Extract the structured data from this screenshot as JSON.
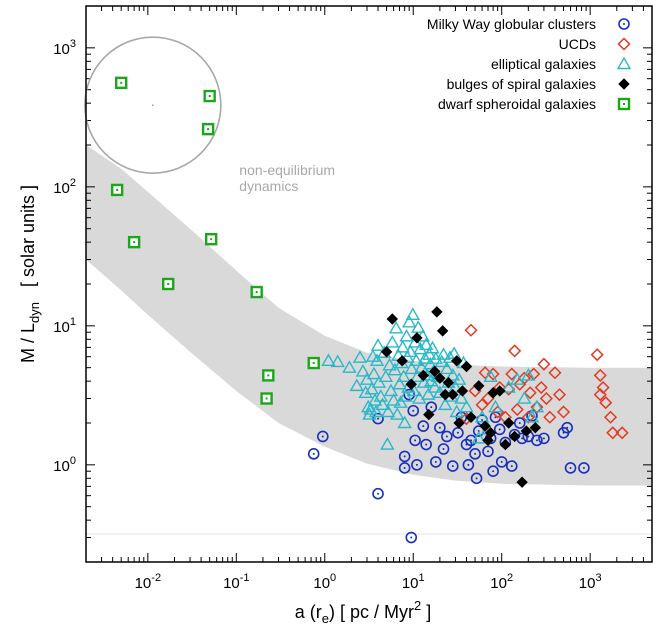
{
  "chart_data": {
    "type": "scatter",
    "xscale": "log",
    "yscale": "log",
    "xlim": [
      0.002,
      5000
    ],
    "ylim": [
      0.2,
      2000
    ],
    "x_ticks": [
      {
        "value": 0.01,
        "base": "10",
        "exp": "-2"
      },
      {
        "value": 0.1,
        "base": "10",
        "exp": "-1"
      },
      {
        "value": 1,
        "base": "10",
        "exp": "0"
      },
      {
        "value": 10,
        "base": "10",
        "exp": "1"
      },
      {
        "value": 100,
        "base": "10",
        "exp": "2"
      },
      {
        "value": 1000,
        "base": "10",
        "exp": "3"
      }
    ],
    "y_ticks": [
      {
        "value": 1,
        "base": "10",
        "exp": "0"
      },
      {
        "value": 10,
        "base": "10",
        "exp": "1"
      },
      {
        "value": 100,
        "base": "10",
        "exp": "2"
      },
      {
        "value": 1000,
        "base": "10",
        "exp": "3"
      }
    ],
    "xlabel": {
      "a": "a (r",
      "sub": "e",
      "mid": ")   [ pc / Myr",
      "sup": "2",
      "end": " ]"
    },
    "ylabel": {
      "a": "M / L",
      "sub": "dyn",
      "end": "   [ solar units ]"
    },
    "legend_position": "top-right",
    "annotation": [
      "non-equilibrium",
      "dynamics"
    ],
    "band": {
      "upper": [
        [
          0.002,
          200
        ],
        [
          0.005,
          135
        ],
        [
          0.01,
          92
        ],
        [
          0.03,
          50
        ],
        [
          0.1,
          25
        ],
        [
          0.3,
          13.5
        ],
        [
          1,
          8.5
        ],
        [
          3,
          6.4
        ],
        [
          10,
          5.6
        ],
        [
          30,
          5.25
        ],
        [
          100,
          5.1
        ],
        [
          1000,
          5.0
        ],
        [
          5000,
          5.0
        ]
      ],
      "lower": [
        [
          0.002,
          30
        ],
        [
          0.005,
          18
        ],
        [
          0.01,
          12
        ],
        [
          0.03,
          6.5
        ],
        [
          0.1,
          3.4
        ],
        [
          0.3,
          2.0
        ],
        [
          1,
          1.35
        ],
        [
          3,
          1.02
        ],
        [
          10,
          0.85
        ],
        [
          30,
          0.77
        ],
        [
          100,
          0.73
        ],
        [
          1000,
          0.71
        ],
        [
          5000,
          0.71
        ]
      ]
    },
    "series": [
      {
        "name": "Milky Way globular clusters",
        "marker": "circle-dot",
        "color": "#1a2fbd",
        "points": [
          [
            0.75,
            1.2
          ],
          [
            0.95,
            1.6
          ],
          [
            4.0,
            0.62
          ],
          [
            4.0,
            2.15
          ],
          [
            8.0,
            0.95
          ],
          [
            8.0,
            1.15
          ],
          [
            9.0,
            3.2
          ],
          [
            10.0,
            2.45
          ],
          [
            10.5,
            1.5
          ],
          [
            11.0,
            1.0
          ],
          [
            9.5,
            0.3
          ],
          [
            13.0,
            1.9
          ],
          [
            14.0,
            1.4
          ],
          [
            16.0,
            2.6
          ],
          [
            18.0,
            1.05
          ],
          [
            20.0,
            1.85
          ],
          [
            22.0,
            1.3
          ],
          [
            24.0,
            1.6
          ],
          [
            28.0,
            0.98
          ],
          [
            32.0,
            1.7
          ],
          [
            35.0,
            2.2
          ],
          [
            40.0,
            1.4
          ],
          [
            42.0,
            1.0
          ],
          [
            45.0,
            1.5
          ],
          [
            50.0,
            1.2
          ],
          [
            52.0,
            0.8
          ],
          [
            55.0,
            1.75
          ],
          [
            60.0,
            2.1
          ],
          [
            70.0,
            1.25
          ],
          [
            75.0,
            1.55
          ],
          [
            80.0,
            0.9
          ],
          [
            85.0,
            2.2
          ],
          [
            95.0,
            1.8
          ],
          [
            100.0,
            1.05
          ],
          [
            110.0,
            1.45
          ],
          [
            130.0,
            0.98
          ],
          [
            140.0,
            1.65
          ],
          [
            160.0,
            2.0
          ],
          [
            170.0,
            1.55
          ],
          [
            200.0,
            1.6
          ],
          [
            220.0,
            2.25
          ],
          [
            250.0,
            1.5
          ],
          [
            300.0,
            1.55
          ],
          [
            500.0,
            1.7
          ],
          [
            550.0,
            1.85
          ],
          [
            600.0,
            0.95
          ],
          [
            850.0,
            0.95
          ]
        ]
      },
      {
        "name": "UCDs",
        "marker": "diamond-open",
        "color": "#e03b24",
        "points": [
          [
            40.0,
            2.15
          ],
          [
            45.0,
            9.3
          ],
          [
            50.0,
            3.4
          ],
          [
            60.0,
            2.7
          ],
          [
            65.0,
            4.6
          ],
          [
            70.0,
            3.0
          ],
          [
            80.0,
            4.5
          ],
          [
            90.0,
            2.4
          ],
          [
            95.0,
            3.6
          ],
          [
            110.0,
            2.2
          ],
          [
            120.0,
            3.5
          ],
          [
            130.0,
            4.5
          ],
          [
            140.0,
            6.6
          ],
          [
            150.0,
            2.5
          ],
          [
            160.0,
            3.8
          ],
          [
            180.0,
            4.2
          ],
          [
            200.0,
            2.2
          ],
          [
            210.0,
            3.3
          ],
          [
            230.0,
            4.5
          ],
          [
            250.0,
            2.6
          ],
          [
            280.0,
            3.6
          ],
          [
            300.0,
            5.3
          ],
          [
            320.0,
            3.0
          ],
          [
            350.0,
            2.2
          ],
          [
            400.0,
            4.6
          ],
          [
            450.0,
            3.2
          ],
          [
            500.0,
            2.4
          ],
          [
            1200.0,
            6.2
          ],
          [
            1300.0,
            4.4
          ],
          [
            1400.0,
            3.6
          ],
          [
            1300.0,
            3.2
          ],
          [
            1500.0,
            2.8
          ],
          [
            1700.0,
            2.2
          ],
          [
            1800.0,
            1.7
          ],
          [
            2300.0,
            1.7
          ]
        ]
      },
      {
        "name": "elliptical galaxies",
        "marker": "triangle-open",
        "color": "#2ab8c9",
        "points": [
          [
            1.1,
            5.6
          ],
          [
            1.4,
            5.5
          ],
          [
            1.9,
            5.0
          ],
          [
            2.3,
            3.7
          ],
          [
            2.5,
            5.9
          ],
          [
            2.7,
            4.7
          ],
          [
            2.9,
            3.3
          ],
          [
            3.0,
            4.1
          ],
          [
            3.1,
            2.6
          ],
          [
            3.2,
            2.3
          ],
          [
            3.3,
            2.5
          ],
          [
            3.4,
            3.5
          ],
          [
            3.5,
            6.0
          ],
          [
            3.6,
            4.5
          ],
          [
            3.7,
            2.9
          ],
          [
            3.8,
            2.4
          ],
          [
            3.9,
            5.6
          ],
          [
            4.0,
            7.2
          ],
          [
            4.1,
            3.9
          ],
          [
            4.3,
            3.1
          ],
          [
            4.5,
            2.7
          ],
          [
            4.7,
            6.4
          ],
          [
            4.9,
            4.3
          ],
          [
            5.1,
            1.4
          ],
          [
            5.2,
            2.4
          ],
          [
            5.4,
            5.2
          ],
          [
            5.6,
            3.4
          ],
          [
            5.8,
            7.6
          ],
          [
            6.0,
            2.9
          ],
          [
            6.2,
            4.8
          ],
          [
            6.4,
            9.6
          ],
          [
            6.6,
            2.3
          ],
          [
            6.8,
            6.1
          ],
          [
            7.0,
            3.8
          ],
          [
            7.2,
            2.8
          ],
          [
            7.4,
            5.4
          ],
          [
            7.6,
            7.0
          ],
          [
            7.8,
            4.3
          ],
          [
            8.0,
            2.0
          ],
          [
            8.2,
            3.1
          ],
          [
            8.4,
            8.4
          ],
          [
            8.6,
            5.9
          ],
          [
            8.8,
            3.6
          ],
          [
            9.0,
            10.6
          ],
          [
            9.3,
            6.5
          ],
          [
            9.6,
            4.9
          ],
          [
            9.9,
            12.0
          ],
          [
            10.2,
            3.4
          ],
          [
            10.5,
            7.6
          ],
          [
            10.8,
            5.6
          ],
          [
            11.1,
            4.3
          ],
          [
            11.4,
            9.7
          ],
          [
            11.7,
            3.0
          ],
          [
            12.0,
            6.8
          ],
          [
            12.4,
            5.0
          ],
          [
            12.8,
            8.4
          ],
          [
            13.2,
            3.9
          ],
          [
            13.6,
            5.8
          ],
          [
            14.0,
            7.3
          ],
          [
            14.4,
            4.4
          ],
          [
            14.8,
            3.2
          ],
          [
            15.2,
            6.2
          ],
          [
            15.6,
            5.3
          ],
          [
            16.0,
            4.0
          ],
          [
            16.5,
            6.9
          ],
          [
            17.0,
            4.7
          ],
          [
            17.5,
            3.6
          ],
          [
            18.0,
            5.8
          ],
          [
            19.0,
            4.3
          ],
          [
            20.0,
            3.3
          ],
          [
            21.0,
            5.5
          ],
          [
            22.0,
            6.2
          ],
          [
            23.0,
            2.7
          ],
          [
            24.0,
            4.9
          ],
          [
            25.0,
            3.9
          ],
          [
            26.0,
            5.9
          ],
          [
            27.0,
            3.1
          ],
          [
            28.0,
            4.4
          ],
          [
            29.0,
            6.3
          ],
          [
            30.0,
            3.6
          ],
          [
            31.0,
            2.4
          ],
          [
            33.0,
            4.1
          ],
          [
            35.0,
            3.0
          ],
          [
            37.0,
            5.4
          ],
          [
            40.0,
            2.6
          ],
          [
            55.0,
            1.55
          ],
          [
            60.0,
            2.2
          ],
          [
            70.0,
            1.8
          ],
          [
            75.0,
            4.3
          ],
          [
            85.0,
            2.6
          ],
          [
            120.0,
            3.6
          ],
          [
            150.0,
            4.1
          ],
          [
            180.0,
            3.0
          ],
          [
            200.0,
            4.4
          ],
          [
            220.0,
            2.2
          ],
          [
            250.0,
            2.6
          ]
        ]
      },
      {
        "name": "bulges of spiral galaxies",
        "marker": "diamond-filled",
        "color": "#000000",
        "points": [
          [
            5.0,
            6.5
          ],
          [
            5.8,
            11.2
          ],
          [
            7.5,
            5.6
          ],
          [
            9.5,
            3.8
          ],
          [
            11.0,
            8.2
          ],
          [
            13.0,
            4.4
          ],
          [
            15.0,
            2.3
          ],
          [
            17.5,
            4.7
          ],
          [
            18.5,
            12.6
          ],
          [
            20.0,
            4.2
          ],
          [
            21.5,
            9.2
          ],
          [
            23.0,
            3.2
          ],
          [
            25.0,
            3.9
          ],
          [
            28.0,
            3.2
          ],
          [
            31.0,
            5.6
          ],
          [
            33.0,
            2.0
          ],
          [
            36.0,
            3.4
          ],
          [
            40.0,
            5.1
          ],
          [
            45.0,
            2.2
          ],
          [
            55.0,
            3.7
          ],
          [
            65.0,
            1.9
          ],
          [
            70.0,
            1.5
          ],
          [
            75.0,
            1.7
          ],
          [
            80.0,
            3.3
          ],
          [
            95.0,
            3.4
          ],
          [
            110.0,
            1.4
          ],
          [
            120.0,
            2.0
          ],
          [
            140.0,
            1.6
          ],
          [
            170.0,
            0.75
          ],
          [
            190.0,
            1.75
          ],
          [
            240.0,
            1.85
          ]
        ]
      },
      {
        "name": "dwarf spheroidal galaxies",
        "marker": "square-dot",
        "color": "#1aa81a",
        "points": [
          [
            0.0045,
            95.0
          ],
          [
            0.007,
            40.0
          ],
          [
            0.017,
            20.0
          ],
          [
            0.052,
            42.0
          ],
          [
            0.17,
            17.5
          ],
          [
            0.23,
            4.4
          ],
          [
            0.22,
            3.0
          ],
          [
            0.75,
            5.4
          ]
        ]
      }
    ],
    "inset_points": [
      {
        "name": "dwarf spheroidal galaxies",
        "x": 0.005,
        "y": 560.0
      },
      {
        "name": "dwarf spheroidal galaxies",
        "x": 0.05,
        "y": 450.0
      },
      {
        "name": "dwarf spheroidal galaxies",
        "x": 0.048,
        "y": 260.0
      }
    ]
  }
}
